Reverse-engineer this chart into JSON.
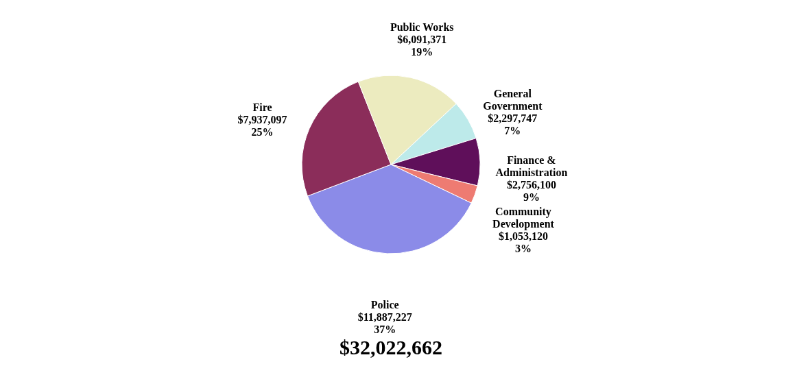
{
  "chart_data": {
    "type": "pie",
    "categories": [
      "General Government",
      "Finance & Administration",
      "Community Development",
      "Police",
      "Fire",
      "Public Works"
    ],
    "values": [
      2297747,
      2756100,
      1053120,
      11887227,
      7937097,
      6091371
    ],
    "value_labels": [
      "$2,297,747\n7%",
      "$2,756,100\n9%",
      "$1,053,120\n3%",
      "$11,887,227\n37%",
      "$7,937,097\n25%",
      "$6,091,371\n19%"
    ],
    "colors": [
      "#bdeaea",
      "#5f0f5a",
      "#ee7b72",
      "#8b8be8",
      "#8b2d5a",
      "#ecebbf"
    ],
    "annotations": [
      "$32,022,662"
    ]
  }
}
